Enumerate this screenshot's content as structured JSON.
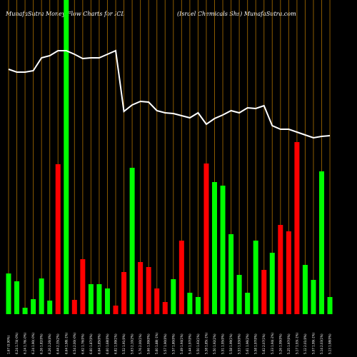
{
  "chart_data": {
    "type": "bar",
    "title": "MunafaSutra  Money Flow  Charts for ICL",
    "subtitle": "(Israel Chemicals Shs) MunafaSutra.com",
    "categories": [
      "1.67 (0.90%)",
      "6.24 1.74(-0%)",
      "6.24 1.76(-0%)",
      "6.24 1.90(-0%)",
      "6.26 1.82(0%)",
      "6.26 2.26(4%)",
      "6.44 2.35(2%)",
      "6.64 1.98(-1%)",
      "6.54 2.00(-0%)",
      "6.62 1.76(0%)",
      "6.60 1.87(0%)",
      "6.64 1.85(0%)",
      "6.60 1.68(0%)",
      "6.82 1.99(1%)",
      "5.52 1.91(0%)",
      "5.63 2.10(2%)",
      "5.76 2.00(1%)",
      "5.66 1.99(0%)",
      "5.60 1.88(-1%)",
      "5.57 1.90(0%)",
      "5.57 1.80(0%)",
      "5.49 1.94(1%)",
      "5.44 1.97(0%)",
      "5.50 1.93(1%)",
      "5.38 1.85(-1%)",
      "5.50 1.92(2%)",
      "5.51 1.95(0%)",
      "5.58 1.99(1%)",
      "5.53 1.93(0%)",
      "5.61 1.96(2%)",
      "5.58 1.97(0%)",
      "5.62 2.07(1%)",
      "5.33 1.94(-2%)",
      "5.26 1.99(0%)",
      "5.25 1.97(0%)",
      "5.17 1.93(-1%)",
      "5.12 2.01(0%)",
      "5.07 1.99(-1%)",
      "5.14 2.03(1%)",
      "5.13 1.98(0%)"
    ],
    "series": [
      {
        "name": "Money Flow",
        "colors": [
          "#00ff00",
          "#00ff00",
          "#00ff00",
          "#00ff00",
          "#00ff00",
          "#00ff00",
          "#ff0000",
          "#00ff00",
          "#ff0000",
          "#ff0000",
          "#00ff00",
          "#00ff00",
          "#00ff00",
          "#ff0000",
          "#ff0000",
          "#00ff00",
          "#ff0000",
          "#ff0000",
          "#ff0000",
          "#ff0000",
          "#00ff00",
          "#ff0000",
          "#00ff00",
          "#00ff00",
          "#ff0000",
          "#00ff00",
          "#00ff00",
          "#00ff00",
          "#00ff00",
          "#00ff00",
          "#00ff00",
          "#ff0000",
          "#00ff00",
          "#ff0000",
          "#ff0000",
          "#ff0000",
          "#00ff00",
          "#00ff00",
          "#00ff00",
          "#00ff00"
        ],
        "values": [
          57,
          46,
          9,
          21,
          50,
          19,
          210,
          440,
          20,
          77,
          42,
          42,
          36,
          12,
          59,
          205,
          73,
          66,
          36,
          17,
          49,
          103,
          30,
          24,
          211,
          185,
          180,
          112,
          55,
          30,
          103,
          62,
          86,
          125,
          116,
          241,
          69,
          48,
          200,
          24
        ]
      },
      {
        "name": "Price",
        "type": "line",
        "color": "#ffffff",
        "values": [
          343,
          339,
          339,
          341,
          359,
          362,
          369,
          369,
          364,
          358,
          359,
          359,
          364,
          369,
          284,
          293,
          298,
          297,
          285,
          282,
          281,
          278,
          275,
          282,
          266,
          274,
          279,
          285,
          282,
          289,
          288,
          292,
          264,
          259,
          259,
          255,
          251,
          247,
          249,
          250
        ]
      }
    ],
    "ylim": [
      0,
      440
    ]
  }
}
